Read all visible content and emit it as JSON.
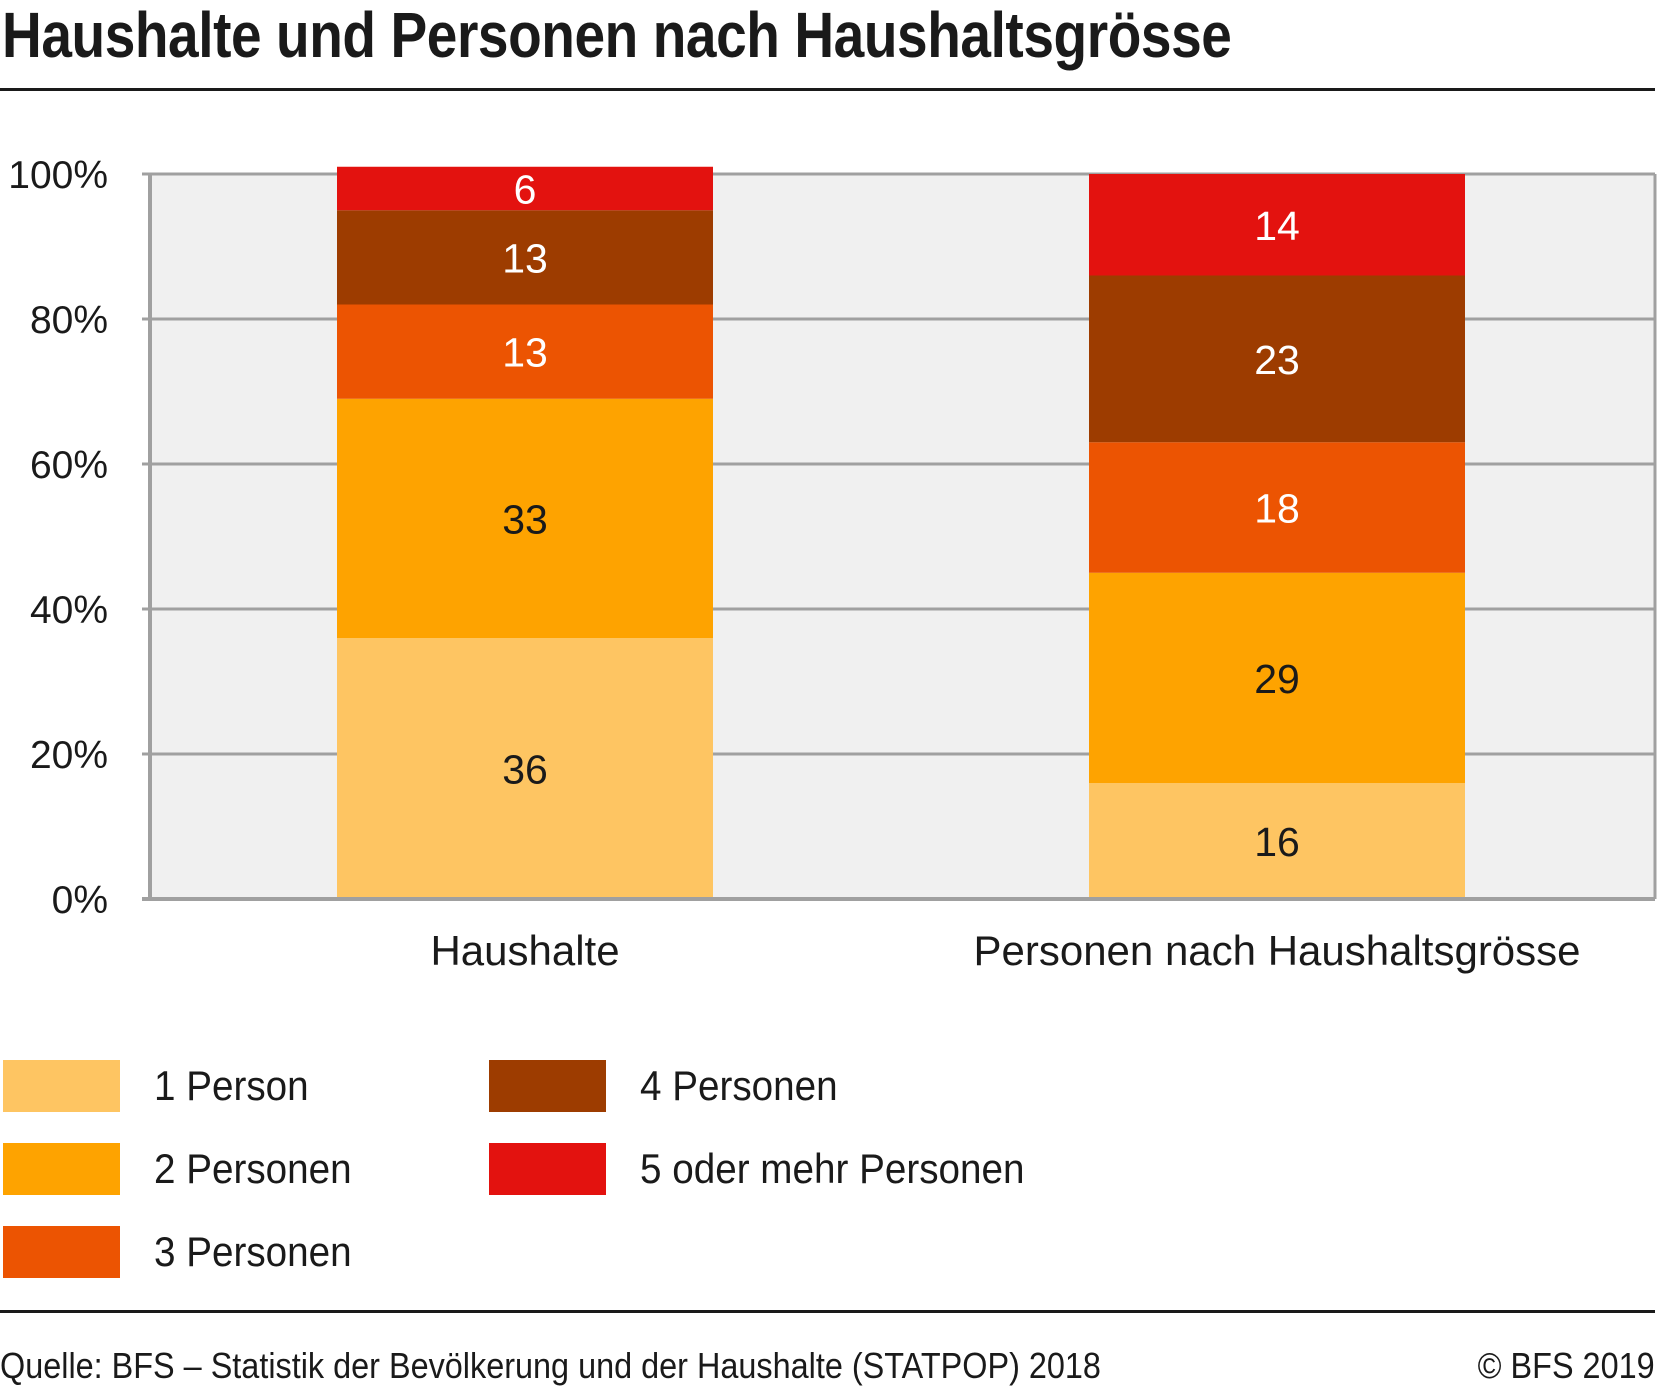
{
  "title": "Haushalte und Personen nach Haushaltsgrösse",
  "footer": {
    "source": "Quelle: BFS – Statistik der Bevölkerung und der Haushalte (STATPOP) 2018",
    "copyright": "© BFS 2019"
  },
  "colors": {
    "plot_background": "#f0f0f0",
    "grid": "#a0a0a0",
    "text": "#1a1a1a",
    "label_light": "#ffffff"
  },
  "chart_data": {
    "type": "bar",
    "stacked": true,
    "orientation": "vertical",
    "title": "Haushalte und Personen nach Haushaltsgrösse",
    "xlabel": "",
    "ylabel": "",
    "categories": [
      "Haushalte",
      "Personen nach Haushaltsgrösse"
    ],
    "ylim": [
      0,
      100
    ],
    "yticks": [
      "0%",
      "20%",
      "40%",
      "60%",
      "80%",
      "100%"
    ],
    "grid": true,
    "legend_position": "bottom-left",
    "series": [
      {
        "name": "1 Person",
        "color": "#fec562",
        "label_color": "#1a1a1a",
        "values": [
          36,
          16
        ]
      },
      {
        "name": "2 Personen",
        "color": "#fea300",
        "label_color": "#1a1a1a",
        "values": [
          33,
          29
        ]
      },
      {
        "name": "3 Personen",
        "color": "#ec5402",
        "label_color": "#ffffff",
        "values": [
          13,
          18
        ]
      },
      {
        "name": "4 Personen",
        "color": "#9d3c00",
        "label_color": "#ffffff",
        "values": [
          13,
          23
        ]
      },
      {
        "name": "5 oder mehr Personen",
        "color": "#e3120f",
        "label_color": "#ffffff",
        "values": [
          6,
          14
        ]
      }
    ]
  }
}
